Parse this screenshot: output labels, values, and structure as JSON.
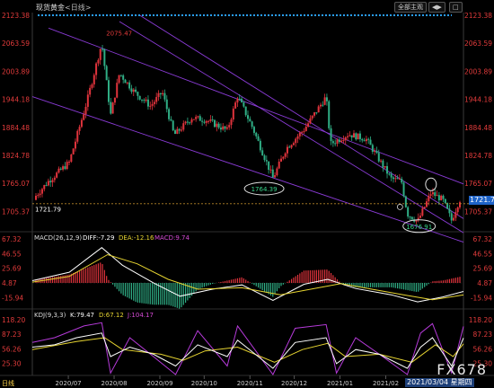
{
  "header": {
    "title": "现货黄金",
    "period_tag": "<日线>",
    "buttons": [
      "全部主观",
      "◀▶",
      "□"
    ]
  },
  "footer": {
    "period": "日线",
    "cursor_date": "2021/03/04 星期四",
    "watermark": "FX678"
  },
  "current_price_label": "1721.78",
  "colors": {
    "background": "#000000",
    "up_candle": "#e0333c",
    "down_candle": "#2fae85",
    "axis_text": "#e23b3b",
    "channel_line": "#8a3bd6",
    "dif_line": "#ffffff",
    "dea_line": "#e6d431",
    "k_line": "#ffffff",
    "d_line": "#e6d431",
    "j_line": "#b53ad9",
    "annotation_ellipse": "#dddddd",
    "dotted_top": "#2a9df4"
  },
  "chart_data": [
    {
      "type": "candlestick",
      "title": "现货黄金 <日线>",
      "ylim": [
        1660,
        2123.38
      ],
      "y_ticks": [
        "2123.38",
        "2063.59",
        "2003.89",
        "1944.18",
        "1884.48",
        "1824.78",
        "1765.07",
        "1705.37"
      ],
      "x_ticks": [
        "2020/07",
        "2020/08",
        "2020/09",
        "2020/10",
        "2020/11",
        "2020/12",
        "2021/01",
        "2021/02"
      ],
      "annotations": [
        "2075.47",
        "1721.79",
        "1764.39",
        "1676.91",
        "1721.78"
      ],
      "grid": false,
      "close_path": [
        {
          "x": "2020-06-20",
          "y": 1730
        },
        {
          "x": "2020-07-01",
          "y": 1770
        },
        {
          "x": "2020-07-15",
          "y": 1810
        },
        {
          "x": "2020-07-27",
          "y": 1940
        },
        {
          "x": "2020-08-06",
          "y": 2064
        },
        {
          "x": "2020-08-12",
          "y": 1910
        },
        {
          "x": "2020-08-18",
          "y": 2000
        },
        {
          "x": "2020-08-28",
          "y": 1960
        },
        {
          "x": "2020-09-08",
          "y": 1930
        },
        {
          "x": "2020-09-16",
          "y": 1960
        },
        {
          "x": "2020-09-24",
          "y": 1868
        },
        {
          "x": "2020-10-06",
          "y": 1905
        },
        {
          "x": "2020-10-16",
          "y": 1900
        },
        {
          "x": "2020-10-30",
          "y": 1878
        },
        {
          "x": "2020-11-06",
          "y": 1951
        },
        {
          "x": "2020-11-16",
          "y": 1885
        },
        {
          "x": "2020-11-30",
          "y": 1776
        },
        {
          "x": "2020-12-09",
          "y": 1840
        },
        {
          "x": "2020-12-21",
          "y": 1880
        },
        {
          "x": "2021-01-05",
          "y": 1950
        },
        {
          "x": "2021-01-08",
          "y": 1849
        },
        {
          "x": "2021-01-20",
          "y": 1870
        },
        {
          "x": "2021-02-01",
          "y": 1860
        },
        {
          "x": "2021-02-18",
          "y": 1775
        },
        {
          "x": "2021-02-25",
          "y": 1770
        },
        {
          "x": "2021-03-01",
          "y": 1700
        },
        {
          "x": "2021-03-08",
          "y": 1684
        },
        {
          "x": "2021-03-17",
          "y": 1745
        },
        {
          "x": "2021-03-25",
          "y": 1730
        },
        {
          "x": "2021-03-31",
          "y": 1686
        },
        {
          "x": "2021-04-05",
          "y": 1728
        },
        {
          "x": "2021-04-08",
          "y": 1740
        }
      ]
    },
    {
      "type": "line",
      "title": "MACD(26,12,9)",
      "ylim": [
        -25,
        67.32
      ],
      "y_ticks": [
        "67.32",
        "46.55",
        "25.69",
        "4.87",
        "-15.94"
      ],
      "series": [
        {
          "name": "DIF",
          "value": "-7.29"
        },
        {
          "name": "DEA",
          "value": "-12.16"
        },
        {
          "name": "MACD",
          "value": "9.74"
        }
      ],
      "dif_path": [
        {
          "x": "2020-06-20",
          "y": 8
        },
        {
          "x": "2020-07-15",
          "y": 20
        },
        {
          "x": "2020-08-06",
          "y": 55
        },
        {
          "x": "2020-08-20",
          "y": 30
        },
        {
          "x": "2020-09-10",
          "y": 5
        },
        {
          "x": "2020-09-28",
          "y": -14
        },
        {
          "x": "2020-10-20",
          "y": -4
        },
        {
          "x": "2020-11-09",
          "y": 2
        },
        {
          "x": "2020-11-30",
          "y": -20
        },
        {
          "x": "2020-12-21",
          "y": 3
        },
        {
          "x": "2021-01-06",
          "y": 10
        },
        {
          "x": "2021-01-25",
          "y": -3
        },
        {
          "x": "2021-02-18",
          "y": -12
        },
        {
          "x": "2021-03-08",
          "y": -22
        },
        {
          "x": "2021-03-25",
          "y": -15
        },
        {
          "x": "2021-04-08",
          "y": -7.29
        }
      ],
      "dea_path": [
        {
          "x": "2020-06-20",
          "y": 6
        },
        {
          "x": "2020-07-15",
          "y": 14
        },
        {
          "x": "2020-08-10",
          "y": 45
        },
        {
          "x": "2020-08-30",
          "y": 32
        },
        {
          "x": "2020-09-20",
          "y": 10
        },
        {
          "x": "2020-10-10",
          "y": -4
        },
        {
          "x": "2020-11-09",
          "y": -2
        },
        {
          "x": "2020-12-05",
          "y": -12
        },
        {
          "x": "2020-12-28",
          "y": -3
        },
        {
          "x": "2021-01-15",
          "y": 4
        },
        {
          "x": "2021-02-05",
          "y": -4
        },
        {
          "x": "2021-03-01",
          "y": -13
        },
        {
          "x": "2021-03-18",
          "y": -19
        },
        {
          "x": "2021-04-08",
          "y": -12.16
        }
      ]
    },
    {
      "type": "line",
      "title": "KDJ(9,3,3)",
      "ylim": [
        0,
        118.2
      ],
      "y_ticks": [
        "118.20",
        "87.23",
        "56.26",
        "25.30"
      ],
      "series": [
        {
          "name": "K",
          "value": "79.47"
        },
        {
          "name": "D",
          "value": "67.12"
        },
        {
          "name": "J",
          "value": "104.17"
        }
      ],
      "k_path": [
        {
          "x": "2020-06-20",
          "y": 60
        },
        {
          "x": "2020-07-05",
          "y": 65
        },
        {
          "x": "2020-07-20",
          "y": 80
        },
        {
          "x": "2020-08-06",
          "y": 90
        },
        {
          "x": "2020-08-12",
          "y": 40
        },
        {
          "x": "2020-08-25",
          "y": 60
        },
        {
          "x": "2020-09-10",
          "y": 45
        },
        {
          "x": "2020-09-25",
          "y": 20
        },
        {
          "x": "2020-10-10",
          "y": 65
        },
        {
          "x": "2020-10-30",
          "y": 40
        },
        {
          "x": "2020-11-06",
          "y": 75
        },
        {
          "x": "2020-11-30",
          "y": 15
        },
        {
          "x": "2020-12-15",
          "y": 70
        },
        {
          "x": "2021-01-05",
          "y": 80
        },
        {
          "x": "2021-01-12",
          "y": 25
        },
        {
          "x": "2021-01-25",
          "y": 55
        },
        {
          "x": "2021-02-10",
          "y": 45
        },
        {
          "x": "2021-03-01",
          "y": 15
        },
        {
          "x": "2021-03-10",
          "y": 60
        },
        {
          "x": "2021-03-18",
          "y": 80
        },
        {
          "x": "2021-03-31",
          "y": 20
        },
        {
          "x": "2021-04-08",
          "y": 79.47
        }
      ],
      "d_path": [
        {
          "x": "2020-06-20",
          "y": 55
        },
        {
          "x": "2020-07-20",
          "y": 72
        },
        {
          "x": "2020-08-08",
          "y": 80
        },
        {
          "x": "2020-08-20",
          "y": 55
        },
        {
          "x": "2020-09-15",
          "y": 45
        },
        {
          "x": "2020-09-30",
          "y": 32
        },
        {
          "x": "2020-10-15",
          "y": 52
        },
        {
          "x": "2020-11-06",
          "y": 60
        },
        {
          "x": "2020-12-01",
          "y": 28
        },
        {
          "x": "2020-12-20",
          "y": 55
        },
        {
          "x": "2021-01-06",
          "y": 68
        },
        {
          "x": "2021-01-18",
          "y": 40
        },
        {
          "x": "2021-02-10",
          "y": 45
        },
        {
          "x": "2021-03-04",
          "y": 28
        },
        {
          "x": "2021-03-20",
          "y": 65
        },
        {
          "x": "2021-04-01",
          "y": 40
        },
        {
          "x": "2021-04-08",
          "y": 67.12
        }
      ],
      "j_path": [
        {
          "x": "2020-06-20",
          "y": 70
        },
        {
          "x": "2020-07-05",
          "y": 80
        },
        {
          "x": "2020-07-25",
          "y": 105
        },
        {
          "x": "2020-08-06",
          "y": 112
        },
        {
          "x": "2020-08-12",
          "y": 5
        },
        {
          "x": "2020-08-25",
          "y": 80
        },
        {
          "x": "2020-09-10",
          "y": 40
        },
        {
          "x": "2020-09-25",
          "y": 2
        },
        {
          "x": "2020-10-10",
          "y": 95
        },
        {
          "x": "2020-10-30",
          "y": 20
        },
        {
          "x": "2020-11-06",
          "y": 105
        },
        {
          "x": "2020-11-30",
          "y": 2
        },
        {
          "x": "2020-12-15",
          "y": 100
        },
        {
          "x": "2021-01-05",
          "y": 108
        },
        {
          "x": "2021-01-12",
          "y": 5
        },
        {
          "x": "2021-01-25",
          "y": 80
        },
        {
          "x": "2021-02-10",
          "y": 45
        },
        {
          "x": "2021-03-01",
          "y": 2
        },
        {
          "x": "2021-03-10",
          "y": 90
        },
        {
          "x": "2021-03-18",
          "y": 110
        },
        {
          "x": "2021-03-31",
          "y": 5
        },
        {
          "x": "2021-04-08",
          "y": 104.17
        }
      ]
    }
  ]
}
